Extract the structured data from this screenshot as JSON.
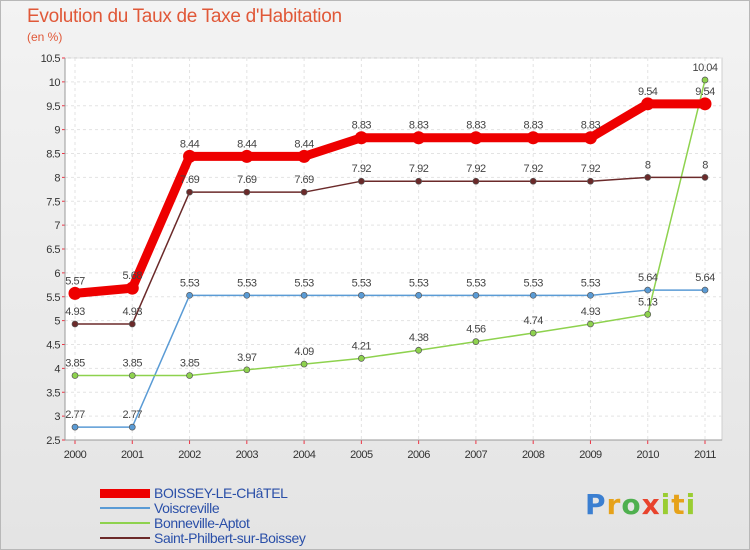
{
  "title": "Evolution du Taux de Taxe d'Habitation",
  "subtitle": "(en %)",
  "brand": {
    "letters": [
      "P",
      "r",
      "o",
      "x",
      "i",
      "t",
      "i"
    ]
  },
  "chart_data": {
    "type": "line",
    "title": "Evolution du Taux de Taxe d'Habitation",
    "ylabel": "(en %)",
    "xlabel": "",
    "ylim": [
      2.5,
      10.5
    ],
    "ytick_step": 0.5,
    "grid": true,
    "legend_position": "bottom-left",
    "categories": [
      "2000",
      "2001",
      "2002",
      "2003",
      "2004",
      "2005",
      "2006",
      "2007",
      "2008",
      "2009",
      "2010",
      "2011"
    ],
    "series": [
      {
        "name": "BOISSEY-LE-CHâTEL",
        "color": "#ee0000",
        "emphasis": true,
        "values": [
          5.57,
          5.68,
          8.44,
          8.44,
          8.44,
          8.83,
          8.83,
          8.83,
          8.83,
          8.83,
          9.54,
          9.54
        ],
        "labels": [
          "5.57",
          "5.68",
          "8.44",
          "8.44",
          "8.44",
          "8.83",
          "8.83",
          "8.83",
          "8.83",
          "8.83",
          "9.54",
          "9.54"
        ]
      },
      {
        "name": "Voiscreville",
        "color": "#5a9bd5",
        "values": [
          2.77,
          2.77,
          5.53,
          5.53,
          5.53,
          5.53,
          5.53,
          5.53,
          5.53,
          5.53,
          5.64,
          5.64
        ],
        "labels": [
          "2.77",
          "2.77",
          "5.53",
          "5.53",
          "5.53",
          "5.53",
          "5.53",
          "5.53",
          "5.53",
          "5.53",
          "5.64",
          "5.64"
        ]
      },
      {
        "name": "Bonneville-Aptot",
        "color": "#8ed24e",
        "values": [
          3.85,
          3.85,
          3.85,
          3.97,
          4.09,
          4.21,
          4.38,
          4.56,
          4.74,
          4.93,
          5.13,
          10.04
        ],
        "labels": [
          "3.85",
          "3.85",
          "3.85",
          "3.97",
          "4.09",
          "4.21",
          "4.38",
          "4.56",
          "4.74",
          "4.93",
          "5.13",
          "10.04"
        ]
      },
      {
        "name": "Saint-Philbert-sur-Boissey",
        "color": "#6b2a2a",
        "values": [
          4.93,
          4.93,
          7.69,
          7.69,
          7.69,
          7.92,
          7.92,
          7.92,
          7.92,
          7.92,
          8,
          8
        ],
        "labels": [
          "4.93",
          "4.93",
          "7.69",
          "7.69",
          "7.69",
          "7.92",
          "7.92",
          "7.92",
          "7.92",
          "7.92",
          "8",
          "8"
        ]
      }
    ]
  }
}
